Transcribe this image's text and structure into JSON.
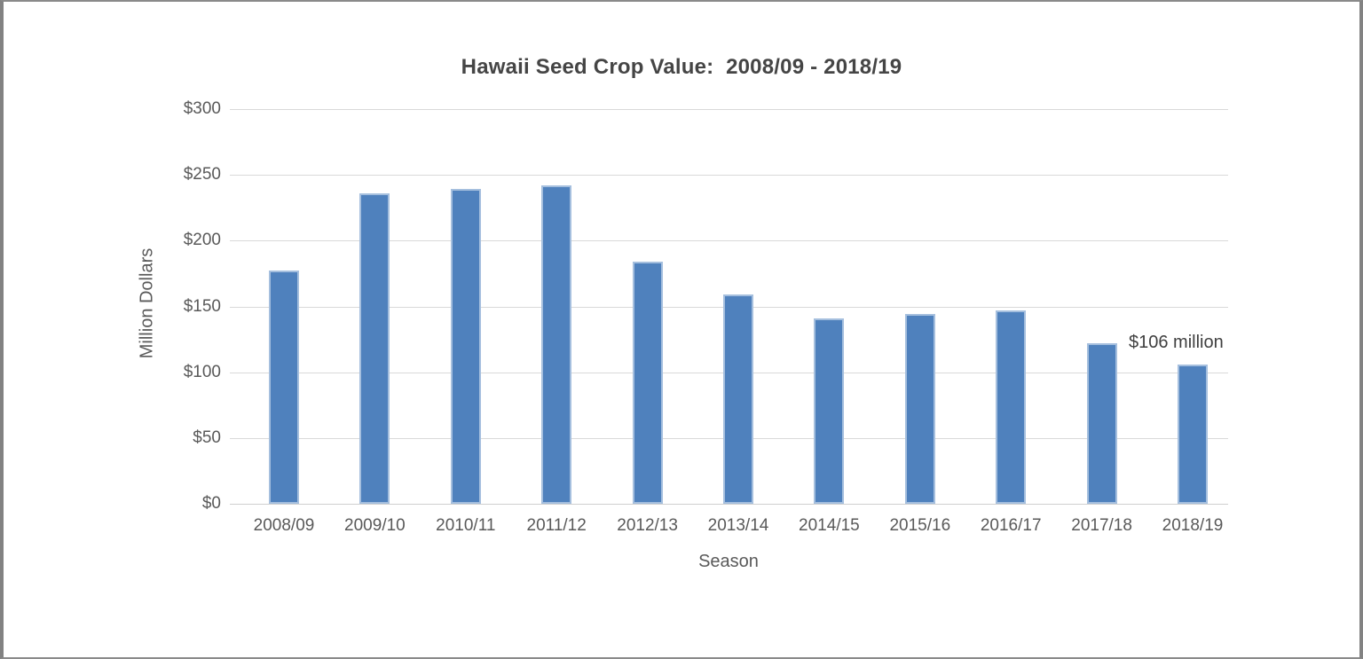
{
  "page": {
    "background_color": "#ffffff",
    "frame_color": "#828282"
  },
  "chart_data": {
    "type": "bar",
    "title": "Hawaii Seed Crop Value:  2008/09 - 2018/19",
    "xlabel": "Season",
    "ylabel": "Million Dollars",
    "categories": [
      "2008/09",
      "2009/10",
      "2010/11",
      "2011/12",
      "2012/13",
      "2013/14",
      "2014/15",
      "2015/16",
      "2016/17",
      "2017/18",
      "2018/19"
    ],
    "values": [
      177,
      236,
      239,
      242,
      184,
      159,
      141,
      144,
      147,
      122,
      106
    ],
    "ylim": [
      0,
      300
    ],
    "ytick_step": 50,
    "ytick_labels": [
      "$0",
      "$50",
      "$100",
      "$150",
      "$200",
      "$250",
      "$300"
    ],
    "grid": true,
    "legend_position": "none",
    "bar_color": "#4f81bd",
    "gridline_color": "#d9d9d9",
    "annotation": {
      "text": "$106 million",
      "target_category": "2018/19"
    }
  }
}
